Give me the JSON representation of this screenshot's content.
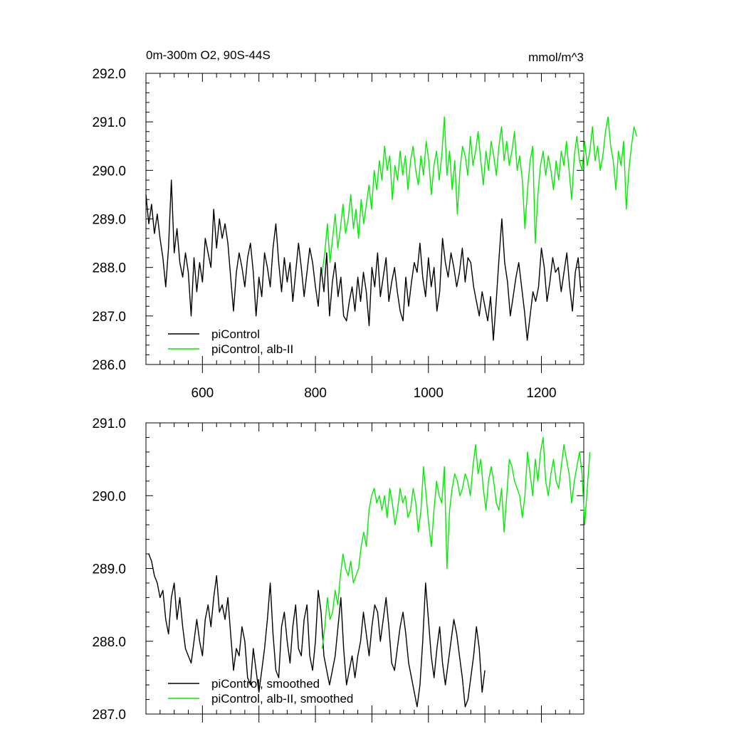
{
  "chart_data": [
    {
      "type": "line",
      "title": "0m-300m O2, 90S-44S",
      "units": "mmol/m^3",
      "xlim": [
        500,
        1275
      ],
      "ylim": [
        286.0,
        292.0
      ],
      "x_ticks": [
        600,
        800,
        1000,
        1200
      ],
      "x_tick_labels": [
        "600",
        "800",
        "1000",
        "1200"
      ],
      "y_ticks": [
        286.0,
        287.0,
        288.0,
        289.0,
        290.0,
        291.0,
        292.0
      ],
      "y_tick_labels": [
        "286.0",
        "287.0",
        "288.0",
        "289.0",
        "290.0",
        "291.0",
        "292.0"
      ],
      "legend_position": "bottom-left",
      "series": [
        {
          "name": "piControl",
          "color": "#000000",
          "x_start": 500,
          "x_step": 5,
          "y": [
            289.5,
            288.9,
            289.3,
            288.7,
            289.1,
            288.6,
            288.2,
            287.6,
            288.4,
            289.8,
            288.3,
            288.8,
            288.1,
            287.8,
            288.3,
            287.9,
            287.0,
            288.2,
            287.5,
            288.1,
            287.7,
            288.6,
            288.3,
            288.0,
            289.2,
            288.4,
            289.0,
            288.6,
            288.9,
            288.5,
            287.8,
            287.1,
            287.9,
            288.3,
            288.0,
            287.6,
            288.2,
            288.5,
            287.9,
            287.0,
            287.8,
            287.4,
            288.3,
            288.0,
            287.6,
            288.4,
            288.9,
            288.1,
            287.5,
            288.2,
            287.7,
            288.1,
            287.3,
            287.9,
            288.5,
            288.0,
            287.4,
            287.9,
            288.4,
            288.1,
            287.6,
            287.2,
            288.0,
            287.5,
            288.3,
            287.0,
            287.7,
            288.1,
            287.4,
            287.8,
            287.0,
            286.9,
            287.3,
            287.6,
            287.1,
            287.8,
            287.3,
            287.9,
            287.5,
            286.8,
            288.0,
            287.6,
            288.3,
            287.4,
            287.8,
            288.2,
            287.3,
            287.7,
            288.0,
            287.5,
            287.1,
            286.9,
            287.8,
            287.2,
            287.7,
            288.1,
            287.9,
            288.5,
            287.8,
            287.4,
            288.2,
            287.6,
            288.0,
            287.1,
            287.5,
            288.6,
            288.1,
            287.8,
            288.3,
            288.0,
            287.6,
            287.9,
            288.4,
            287.7,
            288.2,
            288.1,
            287.6,
            287.3,
            287.0,
            287.5,
            287.2,
            286.9,
            287.4,
            286.5,
            287.3,
            288.2,
            289.0,
            288.1,
            287.7,
            287.0,
            287.4,
            287.8,
            288.1,
            287.6,
            287.1,
            286.5,
            287.0,
            287.5,
            287.3,
            287.6,
            288.4,
            288.0,
            287.3,
            287.7,
            288.2,
            287.9,
            288.0,
            287.5,
            287.9,
            288.3,
            287.6,
            287.1,
            287.9,
            288.2,
            287.5
          ],
          "x_start_dense": true
        },
        {
          "name": "piControl, alb-II",
          "color": "#00ee00",
          "x_start": 812,
          "x_step": 4.6,
          "y": [
            287.9,
            288.3,
            288.9,
            288.1,
            288.6,
            289.1,
            288.4,
            288.8,
            289.3,
            288.7,
            289.0,
            289.5,
            288.8,
            289.2,
            288.6,
            289.4,
            288.9,
            289.3,
            289.7,
            289.2,
            290.0,
            289.6,
            290.2,
            289.8,
            290.5,
            290.0,
            290.3,
            289.4,
            290.1,
            289.8,
            290.4,
            289.9,
            290.3,
            289.6,
            290.2,
            290.5,
            290.0,
            289.7,
            290.3,
            289.9,
            290.6,
            290.2,
            289.5,
            290.1,
            290.4,
            289.8,
            290.3,
            291.1,
            289.9,
            290.4,
            289.6,
            290.2,
            289.1,
            290.0,
            290.5,
            290.3,
            289.9,
            290.7,
            290.1,
            290.4,
            290.8,
            290.2,
            289.7,
            290.4,
            290.0,
            290.6,
            290.3,
            289.9,
            290.5,
            290.9,
            290.2,
            290.6,
            290.1,
            290.4,
            290.8,
            290.0,
            290.3,
            289.8,
            288.8,
            289.6,
            290.2,
            290.5,
            288.5,
            289.5,
            290.1,
            290.4,
            289.9,
            290.3,
            290.0,
            289.6,
            290.2,
            289.8,
            290.4,
            290.1,
            290.6,
            290.0,
            289.4,
            290.3,
            290.7,
            290.2,
            290.0,
            290.6,
            290.1,
            290.4,
            290.9,
            290.2,
            290.5,
            290.0,
            290.3,
            290.8,
            291.1,
            290.5,
            290.2,
            289.6,
            290.4,
            290.1,
            290.6,
            289.2,
            290.0,
            290.5,
            290.9,
            290.7
          ]
        }
      ]
    },
    {
      "type": "line",
      "xlim": [
        500,
        1275
      ],
      "ylim": [
        287.0,
        291.0
      ],
      "x_ticks": [
        600,
        800,
        1000,
        1200
      ],
      "y_ticks": [
        287.0,
        288.0,
        289.0,
        290.0,
        291.0
      ],
      "y_tick_labels": [
        "287.0",
        "288.0",
        "289.0",
        "290.0",
        "291.0"
      ],
      "legend_position": "bottom-left",
      "series": [
        {
          "name": "piControl, smoothed",
          "color": "#000000",
          "x_start": 505,
          "x_step": 5,
          "y": [
            289.2,
            289.1,
            288.9,
            288.8,
            288.6,
            288.7,
            288.3,
            288.1,
            288.6,
            288.8,
            288.3,
            288.6,
            288.2,
            287.9,
            287.8,
            287.7,
            288.0,
            288.3,
            288.0,
            287.8,
            288.3,
            288.5,
            288.2,
            288.6,
            288.9,
            288.4,
            288.5,
            288.3,
            288.6,
            288.1,
            287.6,
            287.9,
            287.8,
            288.2,
            288.0,
            287.5,
            287.4,
            287.9,
            287.6,
            287.3,
            287.6,
            287.9,
            288.3,
            288.8,
            288.1,
            287.6,
            287.5,
            288.2,
            288.4,
            288.0,
            287.7,
            288.2,
            288.5,
            287.9,
            287.8,
            288.3,
            288.5,
            287.8,
            287.6,
            288.0,
            288.7,
            288.4,
            287.8,
            287.6,
            287.4,
            287.6,
            287.8,
            288.2,
            288.6,
            287.9,
            287.4,
            287.6,
            287.8,
            287.5,
            287.8,
            288.0,
            288.4,
            288.1,
            287.8,
            288.2,
            288.5,
            288.4,
            288.0,
            288.3,
            288.6,
            288.2,
            287.7,
            287.6,
            287.9,
            288.2,
            288.4,
            288.1,
            287.7,
            287.5,
            287.3,
            287.1,
            287.4,
            288.0,
            288.8,
            288.3,
            287.8,
            287.5,
            287.9,
            288.2,
            287.7,
            287.4,
            287.7,
            288.0,
            288.3,
            288.1,
            287.8,
            287.5,
            287.1,
            287.2,
            287.5,
            287.8,
            288.2,
            287.9,
            287.3,
            287.6
          ]
        },
        {
          "name": "piControl, alb-II, smoothed",
          "color": "#00ee00",
          "x_start": 812,
          "x_step": 4.6,
          "y": [
            287.9,
            288.2,
            288.6,
            288.3,
            288.4,
            288.7,
            288.5,
            288.9,
            289.2,
            289.0,
            288.9,
            289.1,
            288.8,
            288.9,
            289.0,
            289.3,
            289.5,
            289.3,
            289.8,
            290.0,
            290.1,
            289.9,
            290.0,
            289.8,
            290.0,
            289.7,
            290.1,
            289.9,
            289.6,
            289.8,
            290.1,
            289.9,
            290.0,
            289.7,
            289.8,
            290.1,
            289.9,
            289.5,
            289.8,
            290.4,
            290.0,
            289.6,
            289.3,
            289.8,
            290.2,
            290.0,
            289.9,
            290.4,
            289.0,
            289.8,
            290.1,
            290.3,
            290.2,
            290.0,
            290.1,
            290.3,
            290.2,
            290.0,
            290.4,
            290.7,
            290.3,
            290.5,
            290.1,
            289.8,
            290.2,
            290.4,
            290.2,
            289.9,
            289.8,
            290.1,
            289.5,
            290.0,
            290.5,
            290.4,
            290.2,
            290.1,
            290.0,
            289.7,
            290.0,
            290.6,
            290.3,
            290.0,
            290.5,
            290.2,
            290.6,
            290.8,
            290.2,
            290.0,
            290.3,
            290.5,
            290.2,
            290.1,
            290.4,
            290.7,
            290.5,
            290.3,
            289.9,
            290.2,
            290.4,
            290.6,
            290.3,
            289.6,
            290.1,
            290.6
          ]
        }
      ]
    }
  ]
}
